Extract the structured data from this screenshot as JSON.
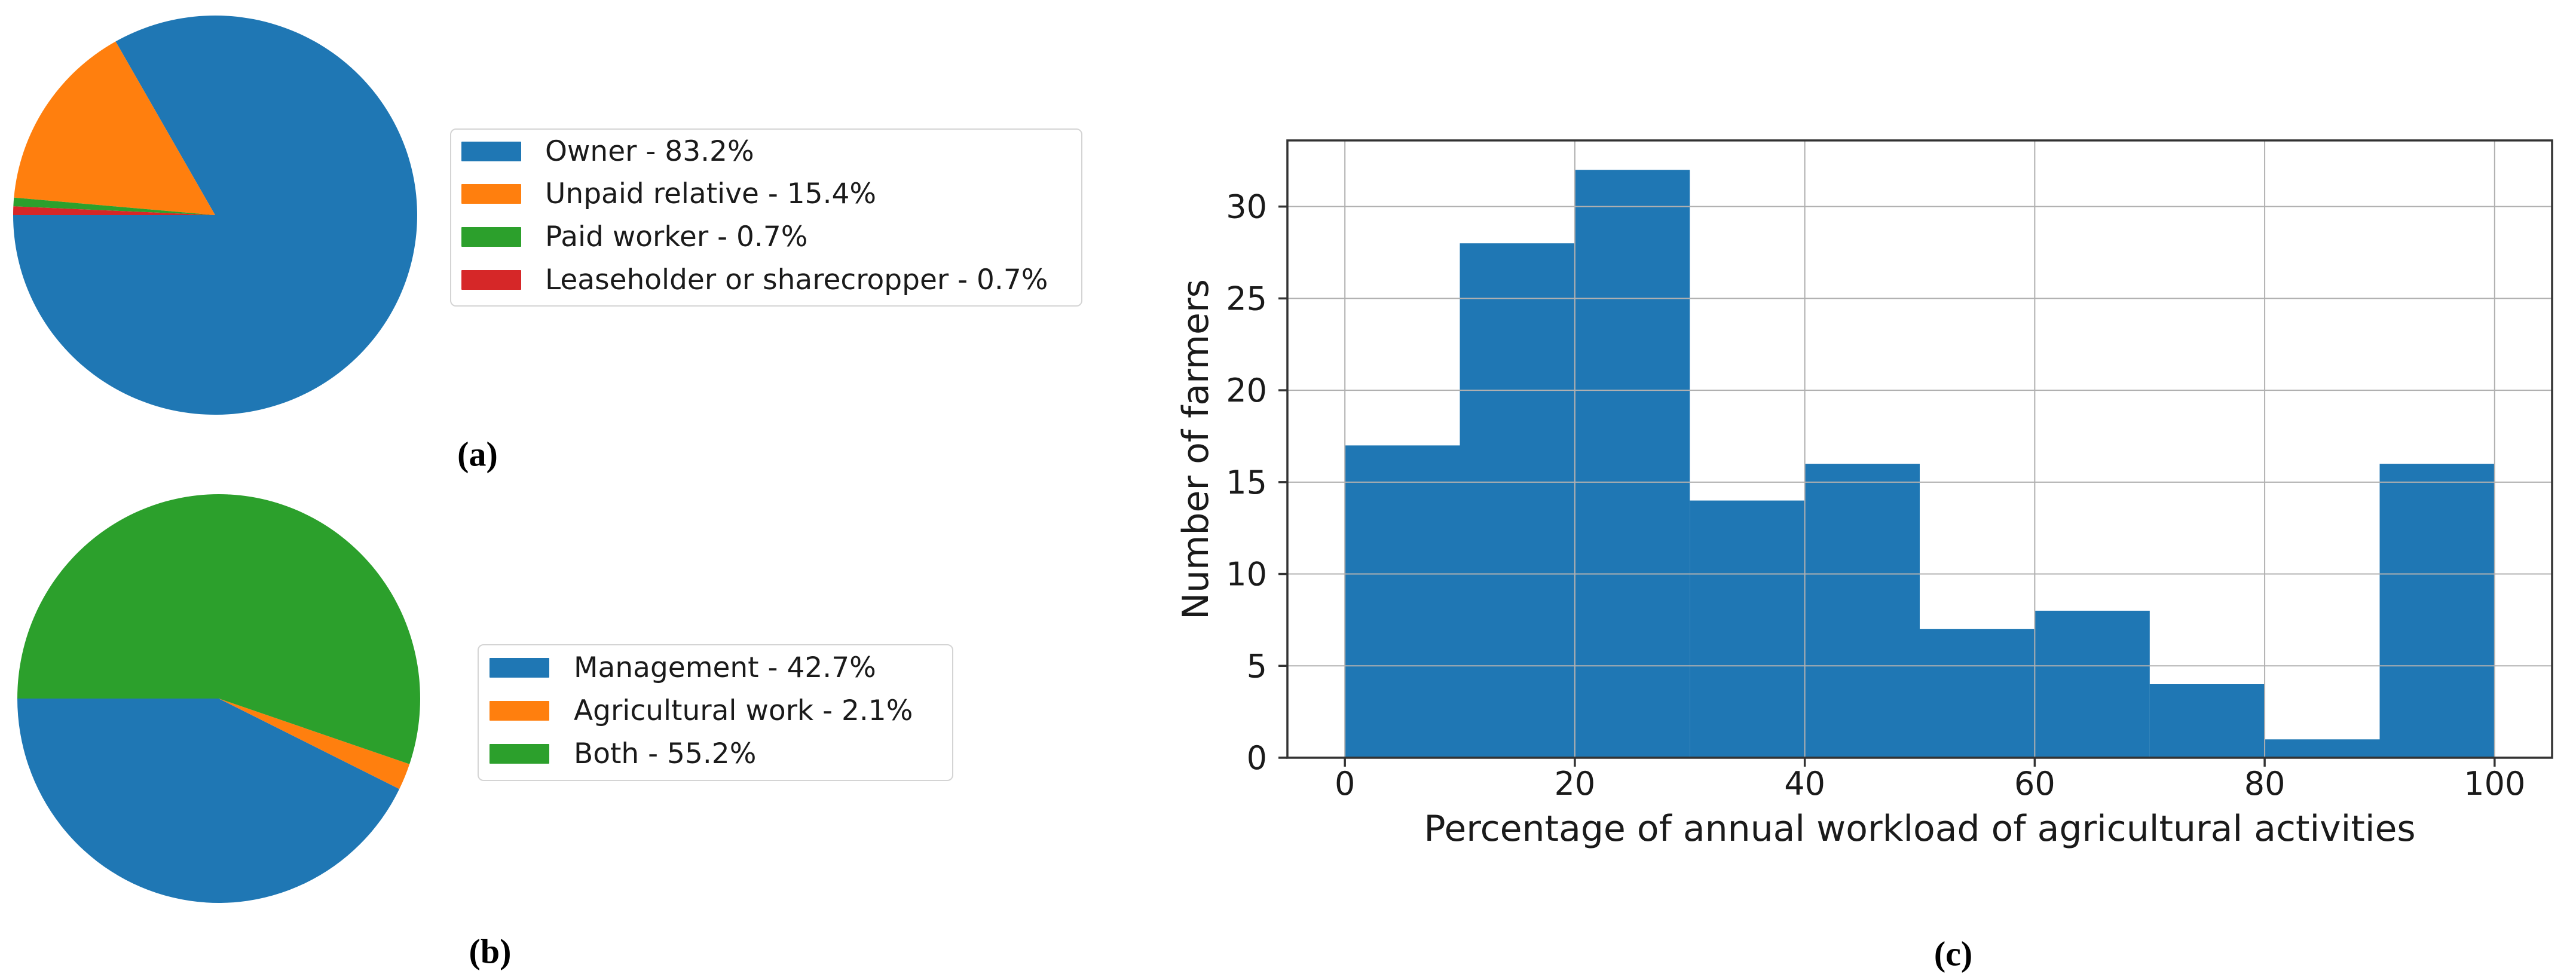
{
  "figure_labels": {
    "a": "(a)",
    "b": "(b)",
    "c": "(c)"
  },
  "colors": {
    "blue": "#1f77b4",
    "orange": "#ff7f0e",
    "green": "#2ca02c",
    "red": "#d62728",
    "grid": "#b0b0b0",
    "spine": "#333333",
    "text": "#1a1a1a",
    "legend_border": "#d4d4d4"
  },
  "chart_data": [
    {
      "panel": "a",
      "type": "pie",
      "start_angle_deg": 180,
      "direction": "counterclockwise",
      "legend_position": "right",
      "slices": [
        {
          "name": "Owner",
          "value_pct": 83.2,
          "color": "#1f77b4",
          "legend_label": "Owner - 83.2%"
        },
        {
          "name": "Unpaid relative",
          "value_pct": 15.4,
          "color": "#ff7f0e",
          "legend_label": "Unpaid relative - 15.4%"
        },
        {
          "name": "Paid worker",
          "value_pct": 0.7,
          "color": "#2ca02c",
          "legend_label": "Paid worker - 0.7%"
        },
        {
          "name": "Leaseholder or sharecropper",
          "value_pct": 0.7,
          "color": "#d62728",
          "legend_label": "Leaseholder or sharecropper - 0.7%"
        }
      ]
    },
    {
      "panel": "b",
      "type": "pie",
      "start_angle_deg": 180,
      "direction": "counterclockwise",
      "legend_position": "right",
      "slices": [
        {
          "name": "Management",
          "value_pct": 42.7,
          "color": "#1f77b4",
          "legend_label": "Management - 42.7%"
        },
        {
          "name": "Agricultural work",
          "value_pct": 2.1,
          "color": "#ff7f0e",
          "legend_label": "Agricultural work - 2.1%"
        },
        {
          "name": "Both",
          "value_pct": 55.2,
          "color": "#2ca02c",
          "legend_label": "Both - 55.2%"
        }
      ]
    },
    {
      "panel": "c",
      "type": "bar",
      "subtype": "histogram",
      "title": "",
      "xlabel": "Percentage of annual workload of agricultural activities",
      "ylabel": "Number of farmers",
      "bin_edges": [
        0,
        10,
        20,
        30,
        40,
        50,
        60,
        70,
        80,
        90,
        100
      ],
      "values": [
        17,
        28,
        32,
        14,
        16,
        7,
        8,
        4,
        1,
        16
      ],
      "bar_color": "#1f77b4",
      "xticks": [
        0,
        20,
        40,
        60,
        80,
        100
      ],
      "yticks": [
        0,
        5,
        10,
        15,
        20,
        25,
        30
      ],
      "xlim": [
        -5,
        105
      ],
      "ylim": [
        0,
        33.6
      ],
      "grid": true,
      "grid_above_bars": true
    }
  ]
}
